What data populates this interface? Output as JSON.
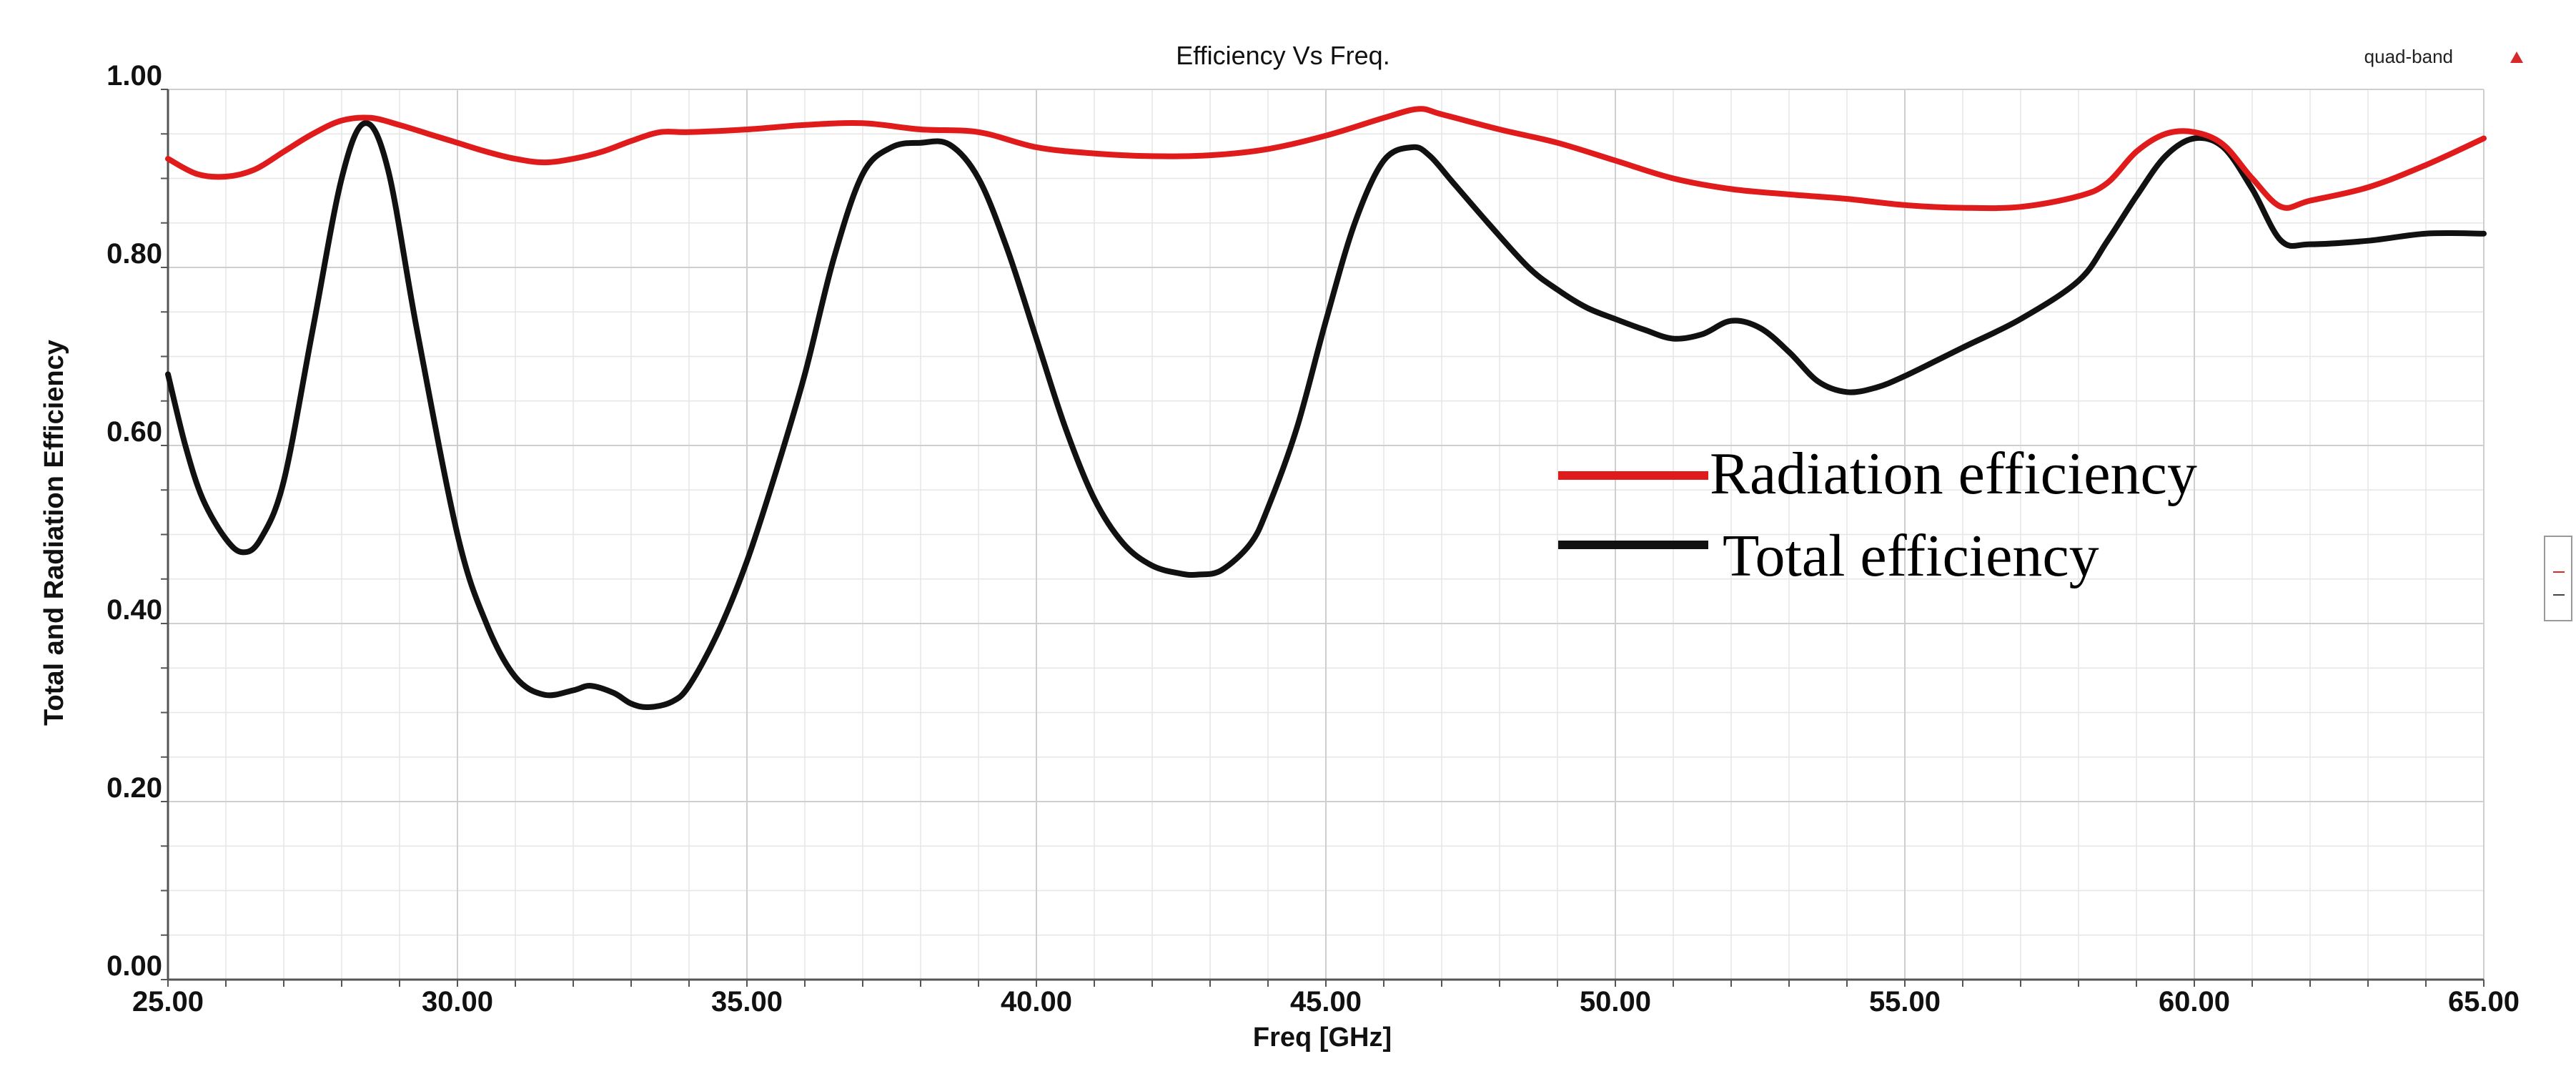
{
  "chart_data": {
    "type": "line",
    "title": "Efficiency Vs Freq.",
    "project_tag": "quad-band",
    "tag_marker_icon": "triangle-up-icon",
    "xlabel": "Freq [GHz]",
    "ylabel": "Total and Radiation Efficiency",
    "xlim": [
      25,
      65
    ],
    "ylim": [
      0,
      1
    ],
    "x_ticks": [
      25,
      30,
      35,
      40,
      45,
      50,
      55,
      60,
      65
    ],
    "x_tick_labels": [
      "25.00",
      "30.00",
      "35.00",
      "40.00",
      "45.00",
      "50.00",
      "55.00",
      "60.00",
      "65.00"
    ],
    "y_ticks": [
      0,
      0.2,
      0.4,
      0.6,
      0.8,
      1.0
    ],
    "y_tick_labels": [
      "0.00",
      "0.20",
      "0.40",
      "0.60",
      "0.80",
      "1.00"
    ],
    "grid": true,
    "legend_position": "center-right",
    "series": [
      {
        "name": "Radiation efficiency",
        "color": "#e01b1b",
        "x": [
          25,
          25.5,
          26,
          26.5,
          27,
          27.5,
          28,
          28.5,
          29,
          29.5,
          30,
          30.5,
          31,
          31.5,
          32,
          32.5,
          33,
          33.5,
          34,
          35,
          36,
          37,
          38,
          39,
          40,
          41,
          42,
          43,
          44,
          45,
          46,
          46.6,
          47,
          48,
          49,
          50,
          51,
          52,
          53,
          54,
          55,
          56,
          57,
          58,
          58.5,
          59,
          59.5,
          60,
          60.5,
          61,
          61.5,
          62,
          63,
          64,
          65
        ],
        "values": [
          0.922,
          0.905,
          0.902,
          0.91,
          0.93,
          0.95,
          0.965,
          0.968,
          0.96,
          0.95,
          0.94,
          0.93,
          0.922,
          0.918,
          0.922,
          0.93,
          0.942,
          0.952,
          0.952,
          0.955,
          0.96,
          0.962,
          0.955,
          0.952,
          0.935,
          0.928,
          0.925,
          0.926,
          0.933,
          0.948,
          0.968,
          0.978,
          0.972,
          0.955,
          0.94,
          0.92,
          0.9,
          0.888,
          0.882,
          0.877,
          0.87,
          0.867,
          0.868,
          0.88,
          0.895,
          0.93,
          0.95,
          0.952,
          0.938,
          0.9,
          0.868,
          0.875,
          0.89,
          0.915,
          0.945
        ]
      },
      {
        "name": "Total efficiency",
        "color": "#111111",
        "x": [
          25,
          25.3,
          25.6,
          26,
          26.3,
          26.6,
          27,
          27.5,
          28,
          28.4,
          28.8,
          29.3,
          30,
          30.5,
          31,
          31.5,
          32,
          32.3,
          32.7,
          33,
          33.3,
          33.7,
          34,
          34.5,
          35,
          35.5,
          36,
          36.5,
          37,
          37.5,
          38,
          38.5,
          39,
          39.5,
          40,
          40.5,
          41,
          41.5,
          42,
          42.5,
          42.8,
          43.2,
          43.7,
          44,
          44.5,
          45,
          45.5,
          46,
          46.5,
          46.8,
          47.2,
          47.8,
          48.5,
          49,
          49.5,
          50,
          50.5,
          51,
          51.5,
          52,
          52.5,
          53,
          53.5,
          54,
          54.5,
          55,
          56,
          57,
          58,
          58.5,
          59,
          59.5,
          60,
          60.5,
          61,
          61.5,
          62,
          63,
          64,
          65
        ],
        "values": [
          0.68,
          0.6,
          0.54,
          0.495,
          0.48,
          0.495,
          0.56,
          0.73,
          0.9,
          0.962,
          0.91,
          0.73,
          0.5,
          0.4,
          0.34,
          0.32,
          0.325,
          0.33,
          0.322,
          0.31,
          0.306,
          0.312,
          0.33,
          0.39,
          0.47,
          0.57,
          0.68,
          0.81,
          0.905,
          0.935,
          0.94,
          0.938,
          0.9,
          0.82,
          0.72,
          0.62,
          0.54,
          0.49,
          0.465,
          0.456,
          0.455,
          0.46,
          0.49,
          0.53,
          0.62,
          0.74,
          0.85,
          0.92,
          0.935,
          0.925,
          0.895,
          0.85,
          0.8,
          0.775,
          0.755,
          0.742,
          0.73,
          0.72,
          0.725,
          0.74,
          0.732,
          0.705,
          0.672,
          0.66,
          0.665,
          0.678,
          0.71,
          0.742,
          0.785,
          0.83,
          0.88,
          0.925,
          0.945,
          0.935,
          0.888,
          0.83,
          0.826,
          0.83,
          0.838,
          0.838
        ]
      }
    ]
  }
}
